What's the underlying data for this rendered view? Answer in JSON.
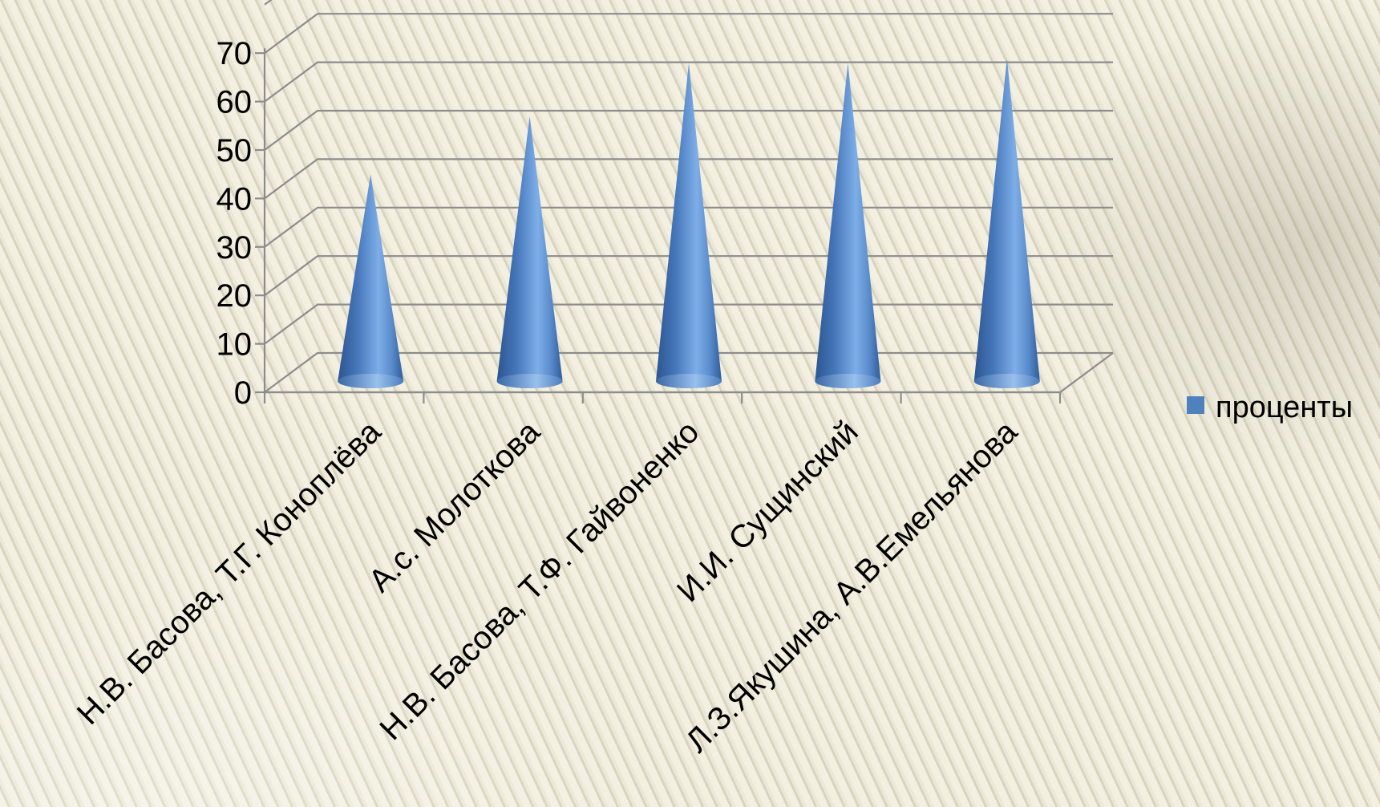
{
  "chart_data": {
    "type": "bar",
    "subtype": "3d-cone",
    "categories": [
      "Н.В. Басова, Т.Г. Коноплёва",
      "А.с. Молоткова",
      "Н.В. Басова, Т.Ф. Гайвоненко",
      "И.И. Сущинский",
      "Л.З.Якушина, А.В.Емельянова"
    ],
    "series": [
      {
        "name": "проценты",
        "values": [
          41,
          53,
          64,
          64,
          65
        ],
        "color": "#4f81bd"
      }
    ],
    "y_ticks": [
      "0",
      "10",
      "20",
      "30",
      "40",
      "50",
      "60",
      "70"
    ],
    "ylim": [
      0,
      80
    ],
    "grid": true,
    "legend": "right",
    "title": "",
    "xlabel": "",
    "ylabel": ""
  }
}
